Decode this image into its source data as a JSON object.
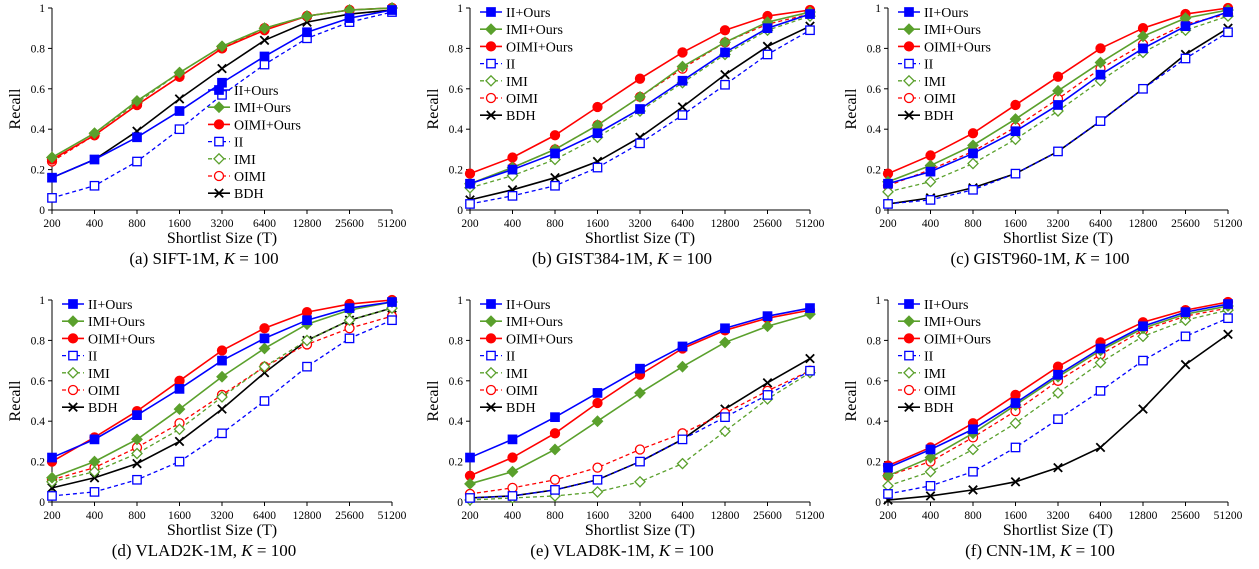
{
  "series_styles": [
    {
      "name": "II+Ours",
      "color": "#0000ff",
      "dashed": false,
      "marker": "square",
      "filled": true
    },
    {
      "name": "IMI+Ours",
      "color": "#5aa02c",
      "dashed": false,
      "marker": "diamond",
      "filled": true
    },
    {
      "name": "OIMI+Ours",
      "color": "#ff0000",
      "dashed": false,
      "marker": "circle",
      "filled": true
    },
    {
      "name": "II",
      "color": "#0000ff",
      "dashed": true,
      "marker": "square",
      "filled": false
    },
    {
      "name": "IMI",
      "color": "#5aa02c",
      "dashed": true,
      "marker": "diamond",
      "filled": false
    },
    {
      "name": "OIMI",
      "color": "#ff0000",
      "dashed": true,
      "marker": "circle",
      "filled": false
    },
    {
      "name": "BDH",
      "color": "#000000",
      "dashed": false,
      "marker": "x",
      "filled": false
    }
  ],
  "chart_data": [
    {
      "type": "line",
      "caption_prefix": "(a)  SIFT-1M, ",
      "caption_k": "K",
      "caption_suffix": " = 100",
      "xlabel": "Shortlist Size (T)",
      "ylabel": "Recall",
      "categories": [
        "200",
        "400",
        "800",
        "1600",
        "3200",
        "6400",
        "12800",
        "25600",
        "51200"
      ],
      "ylim": [
        0,
        1
      ],
      "yticks": [
        "0",
        "0.2",
        "0.4",
        "0.6",
        "0.8",
        "1"
      ],
      "legend": "bottom-right",
      "series": [
        {
          "name": "II+Ours",
          "values": [
            0.16,
            0.25,
            0.36,
            0.49,
            0.63,
            0.76,
            0.88,
            0.95,
            0.99
          ]
        },
        {
          "name": "IMI+Ours",
          "values": [
            0.26,
            0.38,
            0.54,
            0.68,
            0.81,
            0.9,
            0.96,
            0.99,
            1.0
          ]
        },
        {
          "name": "OIMI+Ours",
          "values": [
            0.25,
            0.37,
            0.52,
            0.66,
            0.8,
            0.89,
            0.96,
            0.99,
            1.0
          ]
        },
        {
          "name": "II",
          "values": [
            0.06,
            0.12,
            0.24,
            0.4,
            0.57,
            0.72,
            0.85,
            0.93,
            0.98
          ]
        },
        {
          "name": "IMI",
          "values": [
            0.26,
            0.38,
            0.53,
            0.68,
            0.81,
            0.9,
            0.96,
            0.99,
            1.0
          ]
        },
        {
          "name": "OIMI",
          "values": [
            0.24,
            0.37,
            0.52,
            0.66,
            0.8,
            0.9,
            0.96,
            0.99,
            1.0
          ]
        },
        {
          "name": "BDH",
          "values": [
            0.16,
            0.25,
            0.39,
            0.55,
            0.7,
            0.84,
            0.93,
            0.97,
            0.99
          ]
        }
      ]
    },
    {
      "type": "line",
      "caption_prefix": "(b)  GIST384-1M, ",
      "caption_k": "K",
      "caption_suffix": " = 100",
      "xlabel": "Shortlist Size (T)",
      "ylabel": "Recall",
      "categories": [
        "200",
        "400",
        "800",
        "1600",
        "3200",
        "6400",
        "12800",
        "25600",
        "51200"
      ],
      "ylim": [
        0,
        1
      ],
      "yticks": [
        "0",
        "0.2",
        "0.4",
        "0.6",
        "0.8",
        "1"
      ],
      "legend": "top-left",
      "series": [
        {
          "name": "II+Ours",
          "values": [
            0.13,
            0.2,
            0.28,
            0.38,
            0.5,
            0.64,
            0.78,
            0.9,
            0.97
          ]
        },
        {
          "name": "IMI+Ours",
          "values": [
            0.13,
            0.21,
            0.3,
            0.42,
            0.56,
            0.71,
            0.83,
            0.93,
            0.98
          ]
        },
        {
          "name": "OIMI+Ours",
          "values": [
            0.18,
            0.26,
            0.37,
            0.51,
            0.65,
            0.78,
            0.89,
            0.96,
            0.99
          ]
        },
        {
          "name": "II",
          "values": [
            0.03,
            0.07,
            0.12,
            0.21,
            0.33,
            0.47,
            0.62,
            0.77,
            0.89
          ]
        },
        {
          "name": "IMI",
          "values": [
            0.11,
            0.17,
            0.25,
            0.36,
            0.49,
            0.63,
            0.77,
            0.89,
            0.96
          ]
        },
        {
          "name": "OIMI",
          "values": [
            0.13,
            0.21,
            0.3,
            0.42,
            0.56,
            0.7,
            0.83,
            0.92,
            0.97
          ]
        },
        {
          "name": "BDH",
          "values": [
            0.05,
            0.1,
            0.16,
            0.24,
            0.36,
            0.51,
            0.67,
            0.81,
            0.91
          ]
        }
      ]
    },
    {
      "type": "line",
      "caption_prefix": "(c)  GIST960-1M, ",
      "caption_k": "K",
      "caption_suffix": " = 100",
      "xlabel": "Shortlist Size (T)",
      "ylabel": "Recall",
      "categories": [
        "200",
        "400",
        "800",
        "1600",
        "3200",
        "6400",
        "12800",
        "25600",
        "51200"
      ],
      "ylim": [
        0,
        1
      ],
      "yticks": [
        "0",
        "0.2",
        "0.4",
        "0.6",
        "0.8",
        "1"
      ],
      "legend": "top-left",
      "series": [
        {
          "name": "II+Ours",
          "values": [
            0.13,
            0.19,
            0.28,
            0.39,
            0.52,
            0.67,
            0.8,
            0.91,
            0.98
          ]
        },
        {
          "name": "IMI+Ours",
          "values": [
            0.14,
            0.22,
            0.32,
            0.45,
            0.59,
            0.73,
            0.86,
            0.95,
            0.99
          ]
        },
        {
          "name": "OIMI+Ours",
          "values": [
            0.18,
            0.27,
            0.38,
            0.52,
            0.66,
            0.8,
            0.9,
            0.97,
            1.0
          ]
        },
        {
          "name": "II",
          "values": [
            0.03,
            0.05,
            0.1,
            0.18,
            0.29,
            0.44,
            0.6,
            0.75,
            0.88
          ]
        },
        {
          "name": "IMI",
          "values": [
            0.09,
            0.14,
            0.23,
            0.35,
            0.49,
            0.64,
            0.78,
            0.89,
            0.96
          ]
        },
        {
          "name": "OIMI",
          "values": [
            0.12,
            0.2,
            0.29,
            0.41,
            0.55,
            0.7,
            0.82,
            0.92,
            0.97
          ]
        },
        {
          "name": "BDH",
          "values": [
            0.03,
            0.06,
            0.11,
            0.18,
            0.29,
            0.44,
            0.6,
            0.77,
            0.9
          ]
        }
      ]
    },
    {
      "type": "line",
      "caption_prefix": "(d)  VLAD2K-1M, ",
      "caption_k": "K",
      "caption_suffix": " = 100",
      "xlabel": "Shortlist Size (T)",
      "ylabel": "Recall",
      "categories": [
        "200",
        "400",
        "800",
        "1600",
        "3200",
        "6400",
        "12800",
        "25600",
        "51200"
      ],
      "ylim": [
        0,
        1
      ],
      "yticks": [
        "0",
        "0.2",
        "0.4",
        "0.6",
        "0.8",
        "1"
      ],
      "legend": "top-left",
      "series": [
        {
          "name": "II+Ours",
          "values": [
            0.22,
            0.31,
            0.43,
            0.56,
            0.7,
            0.81,
            0.9,
            0.96,
            0.99
          ]
        },
        {
          "name": "IMI+Ours",
          "values": [
            0.12,
            0.2,
            0.31,
            0.46,
            0.62,
            0.76,
            0.88,
            0.95,
            0.99
          ]
        },
        {
          "name": "OIMI+Ours",
          "values": [
            0.2,
            0.32,
            0.45,
            0.6,
            0.75,
            0.86,
            0.94,
            0.98,
            1.0
          ]
        },
        {
          "name": "II",
          "values": [
            0.03,
            0.05,
            0.11,
            0.2,
            0.34,
            0.5,
            0.67,
            0.81,
            0.9
          ]
        },
        {
          "name": "IMI",
          "values": [
            0.1,
            0.15,
            0.24,
            0.36,
            0.52,
            0.67,
            0.8,
            0.9,
            0.96
          ]
        },
        {
          "name": "OIMI",
          "values": [
            0.11,
            0.17,
            0.27,
            0.39,
            0.53,
            0.67,
            0.78,
            0.86,
            0.92
          ]
        },
        {
          "name": "BDH",
          "values": [
            0.07,
            0.12,
            0.19,
            0.3,
            0.46,
            0.64,
            0.8,
            0.9,
            0.96
          ]
        }
      ]
    },
    {
      "type": "line",
      "caption_prefix": "(e)  VLAD8K-1M, ",
      "caption_k": "K",
      "caption_suffix": " = 100",
      "xlabel": "Shortlist Size (T)",
      "ylabel": "Recall",
      "categories": [
        "200",
        "400",
        "800",
        "1600",
        "3200",
        "6400",
        "12800",
        "25600",
        "51200"
      ],
      "ylim": [
        0,
        1
      ],
      "yticks": [
        "0",
        "0.2",
        "0.4",
        "0.6",
        "0.8",
        "1"
      ],
      "legend": "top-left",
      "series": [
        {
          "name": "II+Ours",
          "values": [
            0.22,
            0.31,
            0.42,
            0.54,
            0.66,
            0.77,
            0.86,
            0.92,
            0.96
          ]
        },
        {
          "name": "IMI+Ours",
          "values": [
            0.09,
            0.15,
            0.26,
            0.4,
            0.54,
            0.67,
            0.79,
            0.87,
            0.93
          ]
        },
        {
          "name": "OIMI+Ours",
          "values": [
            0.13,
            0.22,
            0.34,
            0.49,
            0.63,
            0.76,
            0.85,
            0.91,
            0.95
          ]
        },
        {
          "name": "II",
          "values": [
            0.02,
            0.03,
            0.06,
            0.11,
            0.2,
            0.31,
            0.42,
            0.53,
            0.65
          ]
        },
        {
          "name": "IMI",
          "values": [
            0.01,
            0.02,
            0.03,
            0.05,
            0.1,
            0.19,
            0.35,
            0.51,
            0.64
          ]
        },
        {
          "name": "OIMI",
          "values": [
            0.04,
            0.07,
            0.11,
            0.17,
            0.26,
            0.34,
            0.44,
            0.55,
            0.65
          ]
        },
        {
          "name": "BDH",
          "values": [
            0.02,
            0.03,
            0.06,
            0.11,
            0.2,
            0.31,
            0.46,
            0.59,
            0.71
          ]
        }
      ]
    },
    {
      "type": "line",
      "caption_prefix": "(f)  CNN-1M, ",
      "caption_k": "K",
      "caption_suffix": " = 100",
      "xlabel": "Shortlist Size (T)",
      "ylabel": "Recall",
      "categories": [
        "200",
        "400",
        "800",
        "1600",
        "3200",
        "6400",
        "12800",
        "25600",
        "51200"
      ],
      "ylim": [
        0,
        1
      ],
      "yticks": [
        "0",
        "0.2",
        "0.4",
        "0.6",
        "0.8",
        "1"
      ],
      "legend": "top-left",
      "series": [
        {
          "name": "II+Ours",
          "values": [
            0.17,
            0.26,
            0.36,
            0.49,
            0.63,
            0.76,
            0.87,
            0.94,
            0.98
          ]
        },
        {
          "name": "IMI+Ours",
          "values": [
            0.13,
            0.22,
            0.34,
            0.48,
            0.62,
            0.75,
            0.86,
            0.93,
            0.97
          ]
        },
        {
          "name": "OIMI+Ours",
          "values": [
            0.18,
            0.27,
            0.39,
            0.53,
            0.67,
            0.79,
            0.89,
            0.95,
            0.99
          ]
        },
        {
          "name": "II",
          "values": [
            0.04,
            0.08,
            0.15,
            0.27,
            0.41,
            0.55,
            0.7,
            0.82,
            0.91
          ]
        },
        {
          "name": "IMI",
          "values": [
            0.08,
            0.15,
            0.26,
            0.39,
            0.54,
            0.69,
            0.82,
            0.9,
            0.95
          ]
        },
        {
          "name": "OIMI",
          "values": [
            0.13,
            0.2,
            0.32,
            0.45,
            0.6,
            0.73,
            0.85,
            0.92,
            0.96
          ]
        },
        {
          "name": "BDH",
          "values": [
            0.01,
            0.03,
            0.06,
            0.1,
            0.17,
            0.27,
            0.46,
            0.68,
            0.83
          ]
        }
      ]
    }
  ]
}
